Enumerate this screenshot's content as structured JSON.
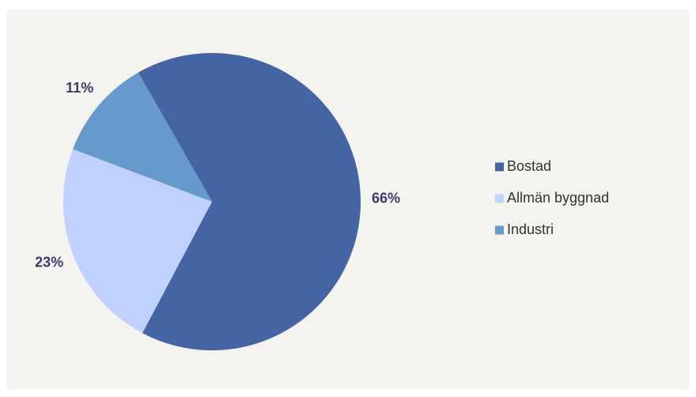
{
  "chart_data": {
    "type": "pie",
    "categories": [
      "Bostad",
      "Allmän byggnad",
      "Industri"
    ],
    "values": [
      66,
      23,
      11
    ],
    "value_labels": [
      "66%",
      "23%",
      "11%"
    ],
    "colors": [
      "#4464a4",
      "#c0d0ff",
      "#6699cc"
    ],
    "legend": "right"
  }
}
